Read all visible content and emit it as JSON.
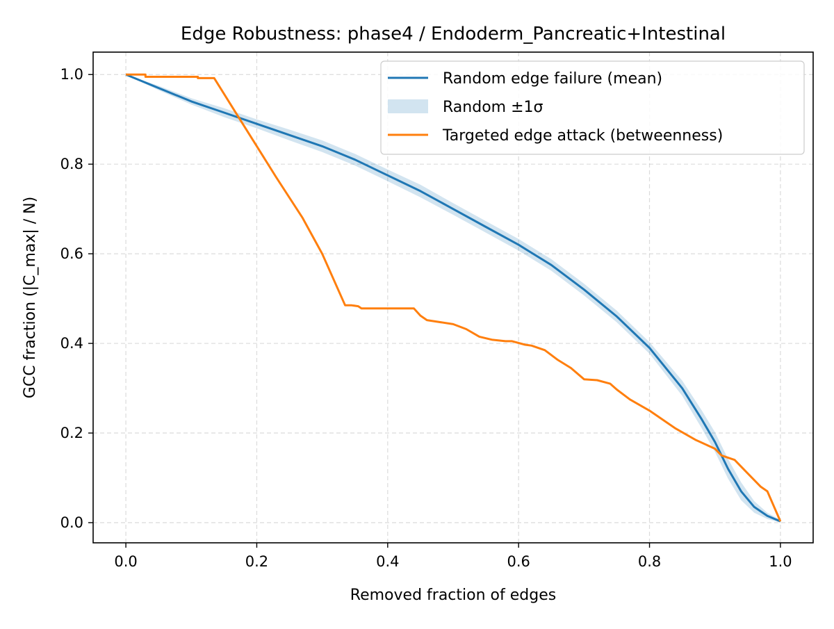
{
  "chart_data": {
    "type": "line",
    "title": "Edge Robustness: phase4 / Endoderm_Pancreatic+Intestinal",
    "xlabel": "Removed fraction of edges",
    "ylabel": "GCC fraction (|C_max| / N)",
    "xlim": [
      -0.05,
      1.05
    ],
    "ylim": [
      -0.045,
      1.05
    ],
    "xticks": [
      0.0,
      0.2,
      0.4,
      0.6,
      0.8,
      1.0
    ],
    "xtick_labels": [
      "0.0",
      "0.2",
      "0.4",
      "0.6",
      "0.8",
      "1.0"
    ],
    "yticks": [
      0.0,
      0.2,
      0.4,
      0.6,
      0.8,
      1.0
    ],
    "ytick_labels": [
      "0.0",
      "0.2",
      "0.4",
      "0.6",
      "0.8",
      "1.0"
    ],
    "grid": true,
    "legend_position": "top-right",
    "series": [
      {
        "name": "Random edge failure (mean)",
        "kind": "line",
        "color": "#1f77b4",
        "x": [
          0.0,
          0.05,
          0.1,
          0.15,
          0.2,
          0.25,
          0.3,
          0.35,
          0.4,
          0.45,
          0.5,
          0.55,
          0.6,
          0.65,
          0.7,
          0.75,
          0.8,
          0.85,
          0.88,
          0.9,
          0.92,
          0.94,
          0.96,
          0.98,
          1.0
        ],
        "y": [
          1.0,
          0.97,
          0.94,
          0.915,
          0.89,
          0.865,
          0.84,
          0.81,
          0.775,
          0.74,
          0.7,
          0.66,
          0.62,
          0.575,
          0.52,
          0.46,
          0.39,
          0.3,
          0.23,
          0.18,
          0.12,
          0.07,
          0.035,
          0.015,
          0.003
        ]
      },
      {
        "name": "Random ±1σ",
        "kind": "band",
        "color": "#1f77b4",
        "x": [
          0.0,
          0.05,
          0.1,
          0.15,
          0.2,
          0.25,
          0.3,
          0.35,
          0.4,
          0.45,
          0.5,
          0.55,
          0.6,
          0.65,
          0.7,
          0.75,
          0.8,
          0.85,
          0.88,
          0.9,
          0.92,
          0.94,
          0.96,
          0.98,
          1.0
        ],
        "lower": [
          1.0,
          0.965,
          0.933,
          0.905,
          0.88,
          0.853,
          0.827,
          0.797,
          0.762,
          0.726,
          0.687,
          0.647,
          0.607,
          0.562,
          0.507,
          0.447,
          0.377,
          0.283,
          0.21,
          0.158,
          0.098,
          0.05,
          0.022,
          0.008,
          0.0
        ],
        "upper": [
          1.0,
          0.975,
          0.947,
          0.925,
          0.9,
          0.877,
          0.853,
          0.823,
          0.788,
          0.754,
          0.713,
          0.673,
          0.633,
          0.588,
          0.533,
          0.473,
          0.403,
          0.317,
          0.25,
          0.202,
          0.142,
          0.09,
          0.048,
          0.022,
          0.006
        ]
      },
      {
        "name": "Targeted edge attack (betweenness)",
        "kind": "line",
        "color": "#ff7f0e",
        "x": [
          0.0,
          0.03,
          0.03,
          0.11,
          0.11,
          0.135,
          0.17,
          0.2,
          0.23,
          0.27,
          0.3,
          0.335,
          0.345,
          0.355,
          0.36,
          0.44,
          0.45,
          0.46,
          0.5,
          0.52,
          0.54,
          0.56,
          0.58,
          0.59,
          0.61,
          0.62,
          0.64,
          0.66,
          0.68,
          0.7,
          0.72,
          0.74,
          0.75,
          0.77,
          0.8,
          0.84,
          0.87,
          0.9,
          0.91,
          0.93,
          0.95,
          0.97,
          0.98,
          1.0
        ],
        "y": [
          1.0,
          1.0,
          0.995,
          0.995,
          0.992,
          0.992,
          0.91,
          0.84,
          0.77,
          0.68,
          0.6,
          0.485,
          0.485,
          0.483,
          0.478,
          0.478,
          0.462,
          0.452,
          0.443,
          0.432,
          0.415,
          0.408,
          0.405,
          0.405,
          0.397,
          0.395,
          0.385,
          0.363,
          0.345,
          0.32,
          0.318,
          0.31,
          0.297,
          0.275,
          0.25,
          0.21,
          0.185,
          0.165,
          0.15,
          0.14,
          0.11,
          0.08,
          0.07,
          0.003
        ]
      }
    ]
  }
}
